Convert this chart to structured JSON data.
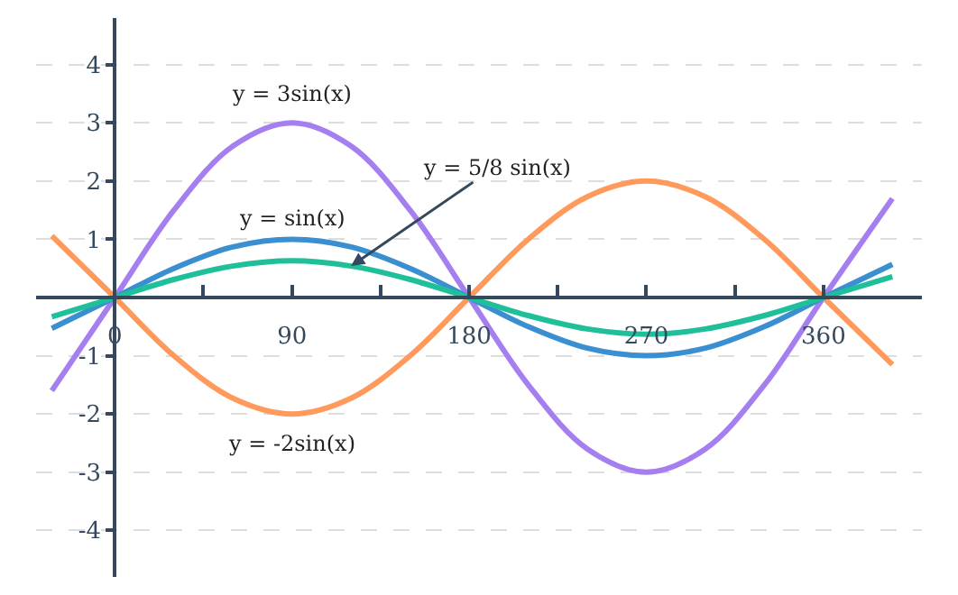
{
  "chart_data": {
    "type": "line",
    "x": [
      -32,
      0,
      30,
      60,
      90,
      120,
      150,
      180,
      210,
      240,
      270,
      300,
      330,
      360,
      395
    ],
    "series": [
      {
        "name": "y = 3sin(x)",
        "color": "#a57ef0",
        "values": [
          -1.6,
          0,
          1.5,
          2.6,
          3,
          2.6,
          1.5,
          0,
          -1.5,
          -2.6,
          -3,
          -2.6,
          -1.5,
          0,
          1.7
        ]
      },
      {
        "name": "y = -2sin(x)",
        "color": "#ff9a5c",
        "values": [
          1.06,
          0,
          -1,
          -1.73,
          -2,
          -1.73,
          -1,
          0,
          1,
          1.73,
          2,
          1.73,
          1,
          0,
          -1.15
        ]
      },
      {
        "name": "y = sin(x)",
        "color": "#3a8fd0",
        "values": [
          -0.53,
          0,
          0.5,
          0.87,
          1,
          0.87,
          0.5,
          0,
          -0.5,
          -0.87,
          -1,
          -0.87,
          -0.5,
          0,
          0.57
        ]
      },
      {
        "name": "y = 5/8 sin(x)",
        "color": "#1fbf9a",
        "values": [
          -0.33,
          0,
          0.31,
          0.54,
          0.63,
          0.54,
          0.31,
          0,
          -0.31,
          -0.54,
          -0.63,
          -0.54,
          -0.31,
          0,
          0.36
        ]
      }
    ],
    "xlim": [
      -40,
      410
    ],
    "ylim": [
      -4.8,
      4.8
    ],
    "xticks": [
      0,
      {
        "value": 45,
        "label": null
      },
      90,
      {
        "value": 135,
        "label": null
      },
      180,
      {
        "value": 225,
        "label": null
      },
      270,
      {
        "value": 315,
        "label": null
      },
      360
    ],
    "yticks": [
      -4,
      -3,
      -2,
      -1,
      1,
      2,
      3,
      4
    ],
    "grid": "y",
    "marker": "none",
    "line_style": "solid"
  }
}
